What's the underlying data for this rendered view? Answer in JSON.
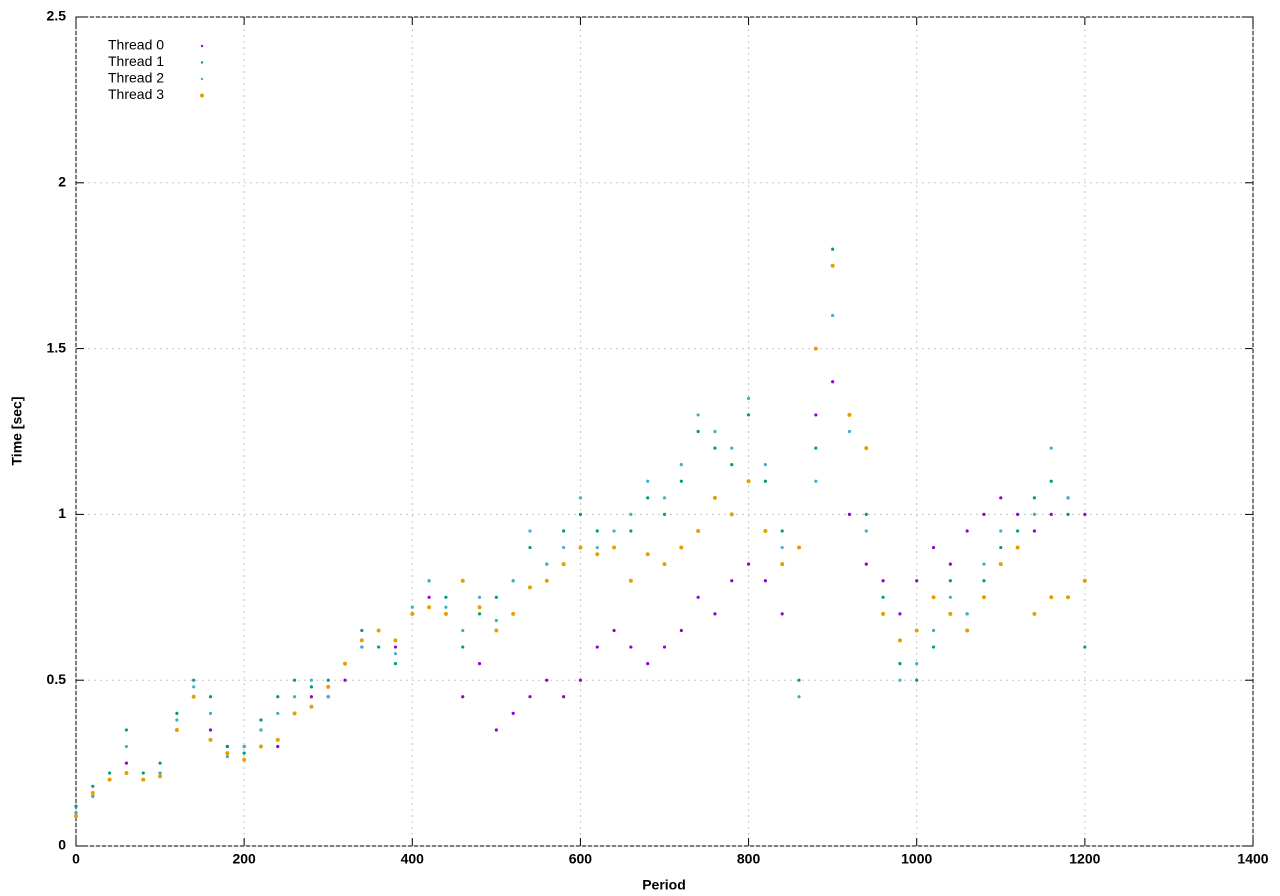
{
  "chart_data": {
    "type": "scatter",
    "xlabel": "Period",
    "ylabel": "Time [sec]",
    "xlim": [
      0,
      1400
    ],
    "xticks": [
      0,
      200,
      400,
      600,
      800,
      1000,
      1200,
      1400
    ],
    "ylim": [
      0,
      2.5
    ],
    "yticks": [
      0,
      0.5,
      1,
      1.5,
      2,
      2.5
    ],
    "grid": true,
    "legend": "top-left",
    "x": [
      0,
      20,
      40,
      60,
      80,
      100,
      120,
      140,
      160,
      180,
      200,
      220,
      240,
      260,
      280,
      300,
      320,
      340,
      360,
      380,
      400,
      420,
      440,
      460,
      480,
      500,
      520,
      540,
      560,
      580,
      600,
      620,
      640,
      660,
      680,
      700,
      720,
      740,
      760,
      780,
      800,
      820,
      840,
      860,
      880,
      900,
      920,
      940,
      960,
      980,
      1000,
      1020,
      1040,
      1060,
      1080,
      1100,
      1120,
      1140,
      1160,
      1180,
      1200
    ],
    "series": [
      {
        "name": "Thread 0",
        "color": "#9400d3",
        "values": [
          0.1,
          0.15,
          0.2,
          0.25,
          0.2,
          0.22,
          0.35,
          0.45,
          0.35,
          0.3,
          0.3,
          0.35,
          0.3,
          0.4,
          0.45,
          0.45,
          0.5,
          0.6,
          0.65,
          0.6,
          0.7,
          0.75,
          0.7,
          0.45,
          0.55,
          0.35,
          0.4,
          0.45,
          0.5,
          0.45,
          0.5,
          0.6,
          0.65,
          0.6,
          0.55,
          0.6,
          0.65,
          0.75,
          0.7,
          0.8,
          0.85,
          0.8,
          0.7,
          0.9,
          1.3,
          1.4,
          1.0,
          0.85,
          0.8,
          0.7,
          0.8,
          0.9,
          0.85,
          0.95,
          1.0,
          1.05,
          1.0,
          0.95,
          1.0,
          1.05,
          1.0
        ]
      },
      {
        "name": "Thread 1",
        "color": "#009e73",
        "values": [
          0.12,
          0.18,
          0.22,
          0.35,
          0.22,
          0.25,
          0.4,
          0.5,
          0.45,
          0.3,
          0.28,
          0.38,
          0.45,
          0.5,
          0.48,
          0.5,
          0.55,
          0.65,
          0.6,
          0.55,
          0.7,
          0.8,
          0.75,
          0.6,
          0.7,
          0.75,
          0.8,
          0.9,
          0.85,
          0.95,
          1.0,
          0.95,
          0.9,
          0.95,
          1.05,
          1.0,
          1.1,
          1.25,
          1.2,
          1.15,
          1.3,
          1.1,
          0.95,
          0.5,
          1.2,
          1.8,
          1.3,
          1.0,
          0.75,
          0.55,
          0.5,
          0.6,
          0.8,
          0.7,
          0.8,
          0.9,
          0.95,
          1.05,
          1.1,
          1.0,
          0.6
        ]
      },
      {
        "name": "Thread 2",
        "color": "#3fb0c9",
        "values": [
          0.1,
          0.15,
          0.2,
          0.3,
          0.2,
          0.22,
          0.38,
          0.48,
          0.4,
          0.27,
          0.3,
          0.35,
          0.4,
          0.45,
          0.5,
          0.45,
          0.55,
          0.6,
          0.65,
          0.58,
          0.72,
          0.8,
          0.72,
          0.65,
          0.75,
          0.68,
          0.8,
          0.95,
          0.85,
          0.9,
          1.05,
          0.9,
          0.95,
          1.0,
          1.1,
          1.05,
          1.15,
          1.3,
          1.25,
          1.2,
          1.35,
          1.15,
          0.9,
          0.45,
          1.1,
          1.6,
          1.25,
          0.95,
          0.7,
          0.5,
          0.55,
          0.65,
          0.75,
          0.7,
          0.85,
          0.95,
          0.9,
          1.0,
          1.2,
          1.05,
          0.8
        ]
      },
      {
        "name": "Thread 3",
        "color": "#e69f00",
        "values": [
          0.09,
          0.16,
          0.2,
          0.22,
          0.2,
          0.21,
          0.35,
          0.45,
          0.32,
          0.28,
          0.26,
          0.3,
          0.32,
          0.4,
          0.42,
          0.48,
          0.55,
          0.62,
          0.65,
          0.62,
          0.7,
          0.72,
          0.7,
          0.8,
          0.72,
          0.65,
          0.7,
          0.78,
          0.8,
          0.85,
          0.9,
          0.88,
          0.9,
          0.8,
          0.88,
          0.85,
          0.9,
          0.95,
          1.05,
          1.0,
          1.1,
          0.95,
          0.85,
          0.9,
          1.5,
          1.75,
          1.3,
          1.2,
          0.7,
          0.62,
          0.65,
          0.75,
          0.7,
          0.65,
          0.75,
          0.85,
          0.9,
          0.7,
          0.75,
          0.75,
          0.8
        ]
      }
    ]
  }
}
